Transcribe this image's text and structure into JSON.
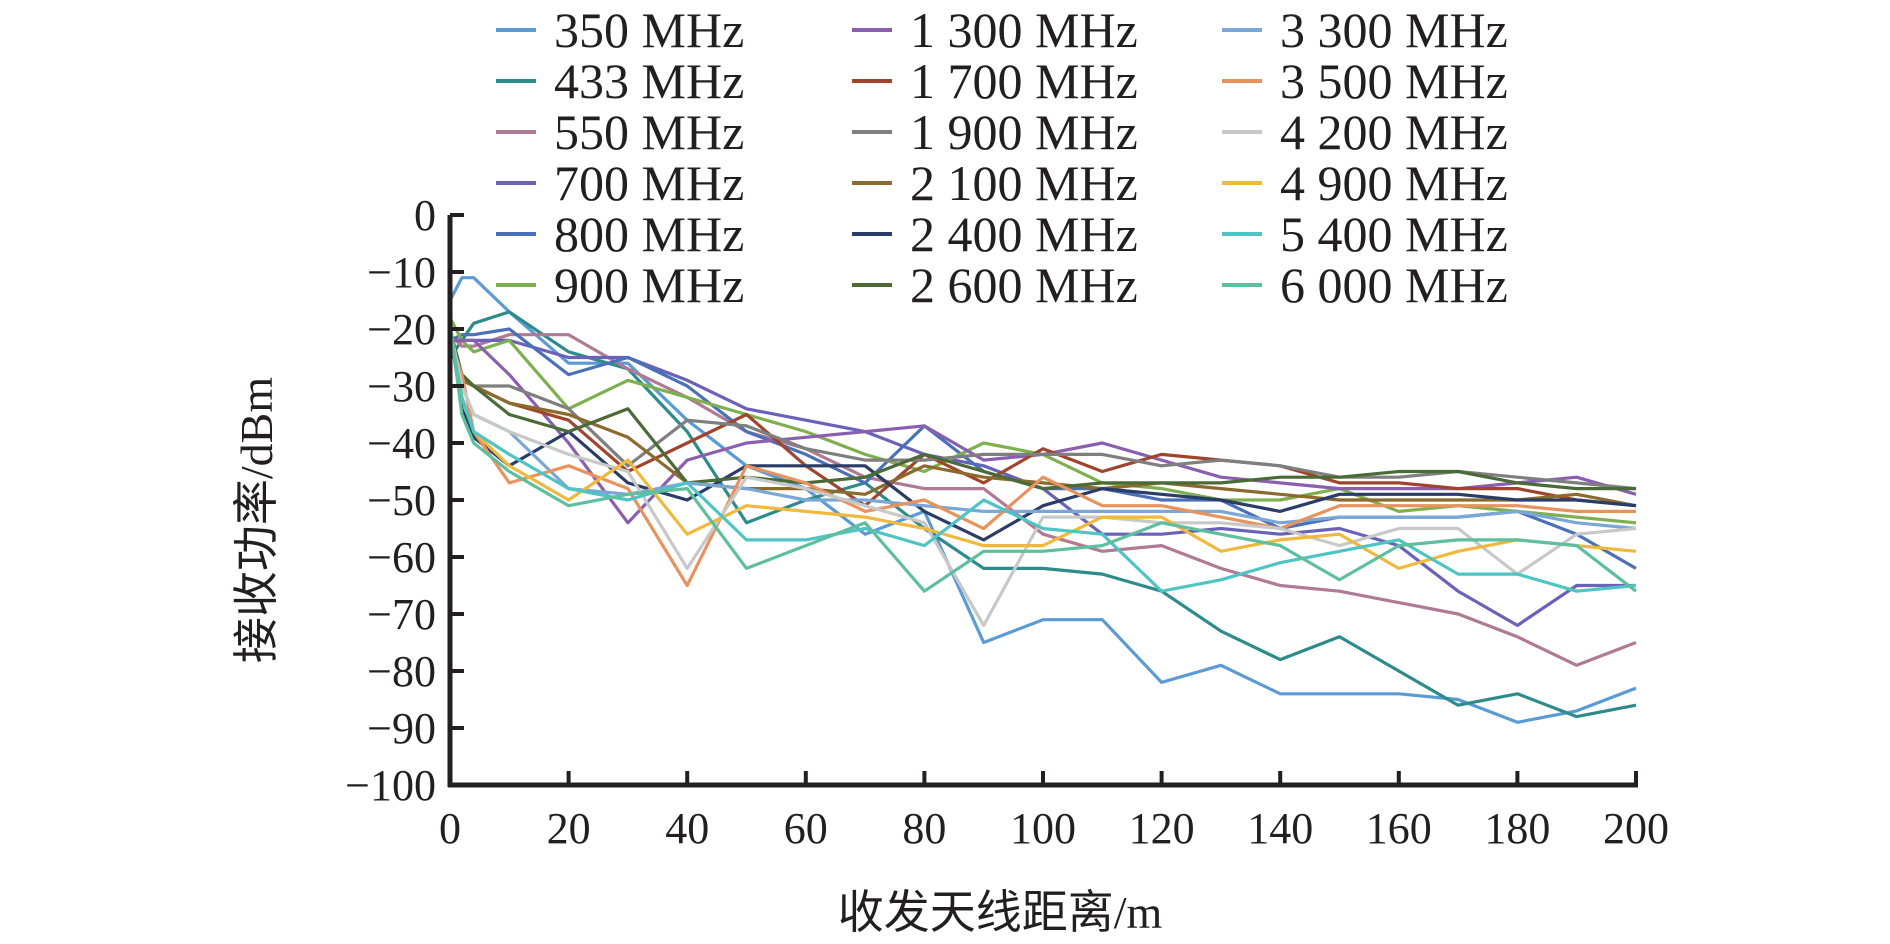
{
  "chart_data": {
    "type": "line",
    "xlabel": "收发天线距离/m",
    "ylabel": "接收功率/dBm",
    "xlim": [
      0,
      200
    ],
    "ylim": [
      -100,
      0
    ],
    "x_ticks": [
      "0",
      "20",
      "40",
      "60",
      "80",
      "100",
      "120",
      "140",
      "160",
      "180",
      "200"
    ],
    "y_ticks": [
      "0",
      "−10",
      "−20",
      "−30",
      "−40",
      "−50",
      "−60",
      "−70",
      "−80",
      "−90",
      "−100"
    ],
    "grid": false,
    "legend_position": "top",
    "x": [
      0,
      2,
      4,
      10,
      20,
      30,
      40,
      50,
      60,
      70,
      80,
      90,
      100,
      110,
      120,
      130,
      140,
      150,
      160,
      170,
      180,
      190,
      200
    ],
    "series": [
      {
        "name": "350 MHz",
        "color": "#5b9bd5",
        "values": [
          -15,
          -11,
          -11,
          -17,
          -26,
          -26,
          -36,
          -44,
          -48,
          -56,
          -52,
          -75,
          -71,
          -71,
          -82,
          -79,
          -84,
          -84,
          -84,
          -85,
          -89,
          -87,
          -83
        ]
      },
      {
        "name": "433 MHz",
        "color": "#2e8b8b",
        "values": [
          -25,
          -22,
          -19,
          -17,
          -24,
          -27,
          -38,
          -54,
          -50,
          -47,
          -55,
          -62,
          -62,
          -63,
          -66,
          -73,
          -78,
          -74,
          -80,
          -86,
          -84,
          -88,
          -86
        ]
      },
      {
        "name": "550 MHz",
        "color": "#b07a94",
        "values": [
          -21,
          -23,
          -23,
          -21,
          -21,
          -27,
          -32,
          -38,
          -41,
          -46,
          -48,
          -48,
          -56,
          -59,
          -58,
          -62,
          -65,
          -66,
          -68,
          -70,
          -74,
          -79,
          -75
        ]
      },
      {
        "name": "700 MHz",
        "color": "#6a62b8",
        "values": [
          -22,
          -22,
          -22,
          -22,
          -25,
          -25,
          -29,
          -34,
          -36,
          -38,
          -42,
          -44,
          -48,
          -56,
          -56,
          -55,
          -56,
          -55,
          -58,
          -66,
          -72,
          -65,
          -65
        ]
      },
      {
        "name": "800 MHz",
        "color": "#4a70b8",
        "values": [
          -22,
          -21,
          -21,
          -20,
          -28,
          -25,
          -30,
          -38,
          -42,
          -47,
          -37,
          -45,
          -48,
          -48,
          -50,
          -50,
          -55,
          -53,
          -53,
          -53,
          -52,
          -56,
          -62
        ]
      },
      {
        "name": "900 MHz",
        "color": "#7fb04f",
        "values": [
          -18,
          -22,
          -24,
          -22,
          -34,
          -29,
          -32,
          -35,
          -38,
          -42,
          -45,
          -40,
          -42,
          -47,
          -48,
          -50,
          -50,
          -48,
          -52,
          -51,
          -52,
          -53,
          -54
        ]
      },
      {
        "name": "1 300 MHz",
        "color": "#8b5fb0",
        "values": [
          -22,
          -22,
          -22,
          -28,
          -40,
          -54,
          -43,
          -40,
          -39,
          -38,
          -37,
          -43,
          -42,
          -40,
          -43,
          -46,
          -47,
          -48,
          -48,
          -48,
          -47,
          -46,
          -49
        ]
      },
      {
        "name": "1 700 MHz",
        "color": "#a0452d",
        "values": [
          -22,
          -28,
          -30,
          -33,
          -36,
          -45,
          -40,
          -35,
          -44,
          -51,
          -42,
          -47,
          -41,
          -45,
          -42,
          -43,
          -44,
          -47,
          -47,
          -48,
          -48,
          -50,
          -51
        ]
      },
      {
        "name": "1 900 MHz",
        "color": "#7f7f7f",
        "values": [
          -21,
          -28,
          -30,
          -30,
          -34,
          -44,
          -36,
          -37,
          -41,
          -43,
          -43,
          -42,
          -42,
          -42,
          -44,
          -43,
          -44,
          -46,
          -46,
          -45,
          -46,
          -47,
          -48
        ]
      },
      {
        "name": "2 100 MHz",
        "color": "#8b6a2e",
        "values": [
          -22,
          -29,
          -30,
          -33,
          -35,
          -39,
          -47,
          -48,
          -48,
          -49,
          -44,
          -46,
          -47,
          -48,
          -47,
          -48,
          -49,
          -50,
          -50,
          -50,
          -50,
          -49,
          -51
        ]
      },
      {
        "name": "2 400 MHz",
        "color": "#2a3d66",
        "values": [
          -20,
          -34,
          -39,
          -44,
          -38,
          -47,
          -50,
          -44,
          -44,
          -44,
          -52,
          -57,
          -51,
          -48,
          -49,
          -50,
          -52,
          -49,
          -49,
          -49,
          -50,
          -50,
          -51
        ]
      },
      {
        "name": "2 600 MHz",
        "color": "#4a6b38",
        "values": [
          -20,
          -28,
          -30,
          -35,
          -38,
          -34,
          -47,
          -46,
          -47,
          -46,
          -42,
          -45,
          -48,
          -47,
          -47,
          -47,
          -46,
          -46,
          -45,
          -45,
          -47,
          -48,
          -48
        ]
      },
      {
        "name": "3 300 MHz",
        "color": "#7aa7d6",
        "values": [
          -20,
          -30,
          -35,
          -38,
          -48,
          -49,
          -47,
          -48,
          -50,
          -50,
          -51,
          -52,
          -52,
          -52,
          -52,
          -52,
          -54,
          -53,
          -53,
          -53,
          -52,
          -54,
          -55
        ]
      },
      {
        "name": "3 500 MHz",
        "color": "#e8925e",
        "values": [
          -22,
          -28,
          -38,
          -47,
          -44,
          -48,
          -65,
          -44,
          -47,
          -52,
          -50,
          -55,
          -46,
          -51,
          -51,
          -53,
          -55,
          -51,
          -51,
          -51,
          -51,
          -52,
          -52
        ]
      },
      {
        "name": "4 200 MHz",
        "color": "#c8c8c8",
        "values": [
          -20,
          -30,
          -35,
          -38,
          -42,
          -45,
          -62,
          -46,
          -48,
          -51,
          -54,
          -72,
          -53,
          -53,
          -54,
          -54,
          -55,
          -58,
          -55,
          -55,
          -63,
          -56,
          -55
        ]
      },
      {
        "name": "4 900 MHz",
        "color": "#f0b93e",
        "values": [
          -20,
          -32,
          -38,
          -44,
          -50,
          -43,
          -56,
          -51,
          -52,
          -53,
          -55,
          -58,
          -58,
          -53,
          -53,
          -59,
          -57,
          -56,
          -62,
          -59,
          -57,
          -58,
          -59
        ]
      },
      {
        "name": "5 400 MHz",
        "color": "#4fc4c4",
        "values": [
          -20,
          -32,
          -38,
          -42,
          -48,
          -50,
          -47,
          -57,
          -57,
          -55,
          -58,
          -50,
          -55,
          -56,
          -66,
          -64,
          -61,
          -59,
          -57,
          -63,
          -63,
          -66,
          -65
        ]
      },
      {
        "name": "6 000 MHz",
        "color": "#5ebf9f",
        "values": [
          -19,
          -35,
          -40,
          -45,
          -51,
          -49,
          -48,
          -62,
          -58,
          -54,
          -66,
          -59,
          -59,
          -58,
          -54,
          -56,
          -58,
          -64,
          -58,
          -57,
          -57,
          -58,
          -66
        ]
      }
    ]
  }
}
